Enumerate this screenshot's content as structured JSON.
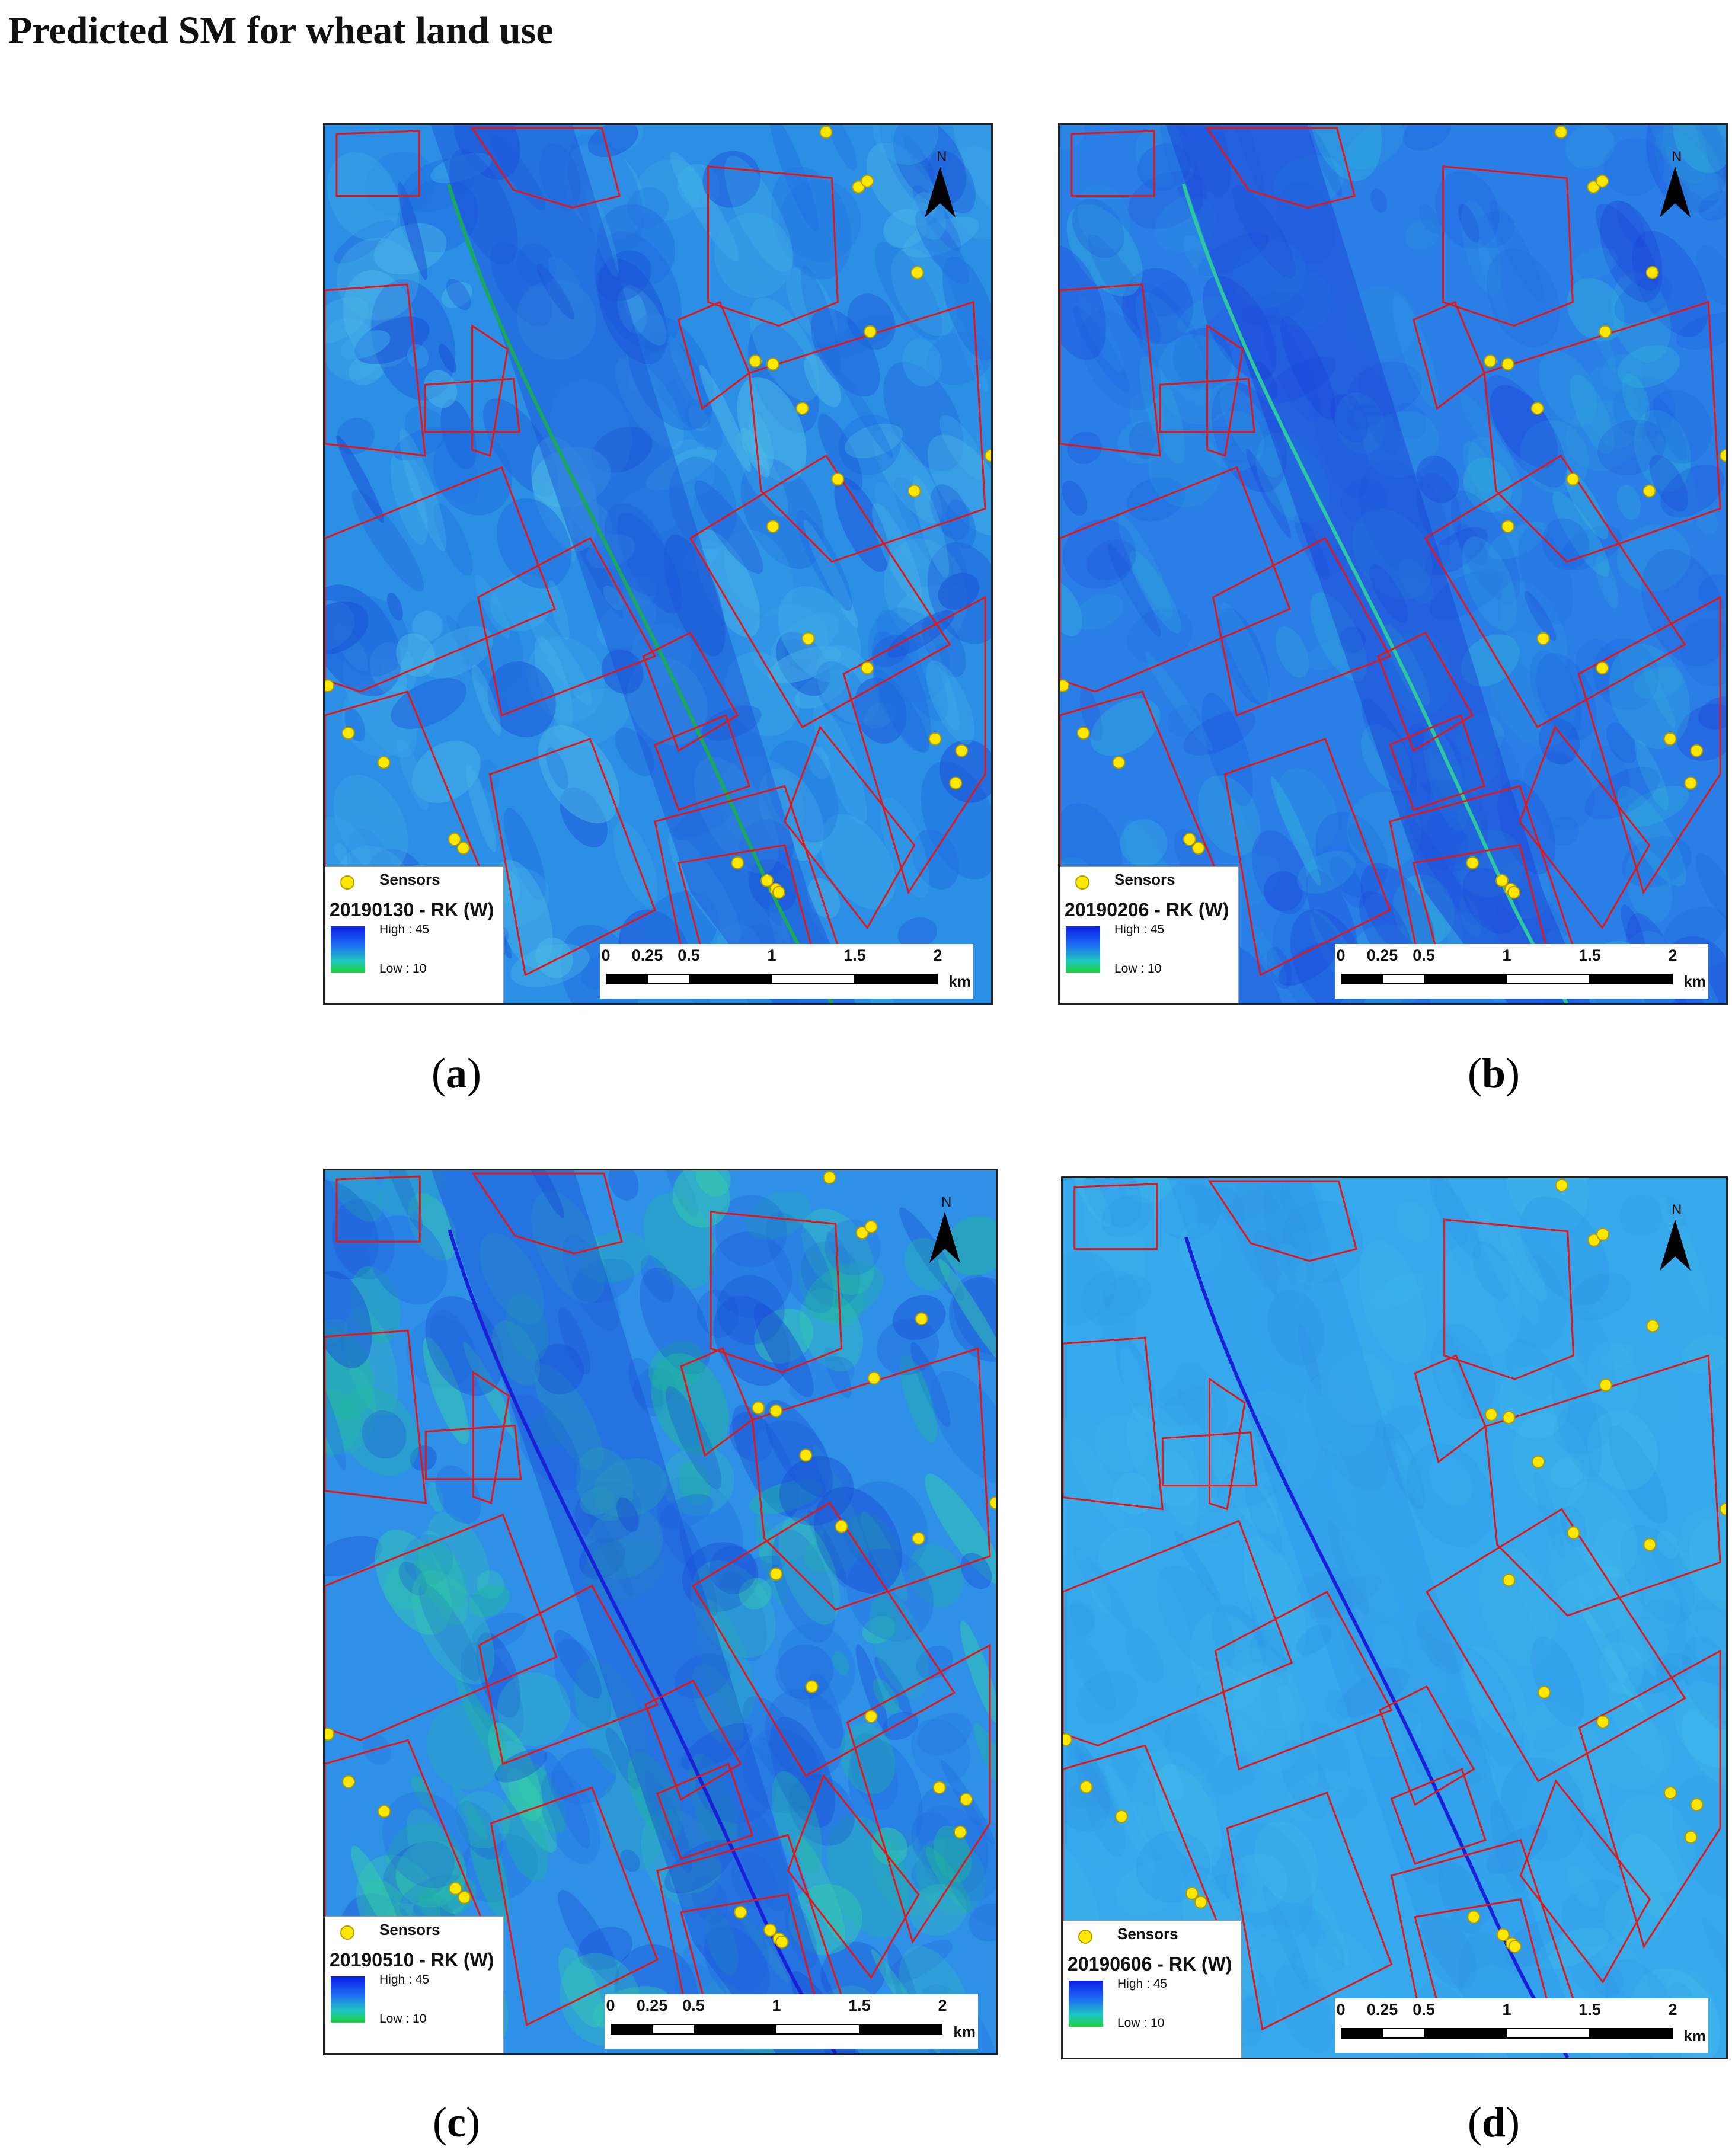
{
  "title": "Predicted SM for wheat land use",
  "legend": {
    "sensor_label": "Sensors",
    "high_label": "High : 45",
    "low_label": "Low : 10",
    "ramp_colors": [
      "#0a1ee6",
      "#1e6cf2",
      "#1ec8c0",
      "#1ed23c"
    ]
  },
  "scale": {
    "ticks": [
      "0",
      "0.25",
      "0.5",
      "1",
      "1.5",
      "2"
    ],
    "unit": "km"
  },
  "north_label": "N",
  "colors": {
    "field_boundary": "#e01818",
    "sensor_fill": "#ffe800",
    "sensor_stroke": "#b39a00"
  },
  "panels": [
    {
      "letter": "a",
      "layer_name": "20190130 - RK (W)"
    },
    {
      "letter": "b",
      "layer_name": "20190206 - RK (W)"
    },
    {
      "letter": "c",
      "layer_name": "20190510 - RK (W)"
    },
    {
      "letter": "d",
      "layer_name": "20190606 - RK (W)"
    }
  ]
}
